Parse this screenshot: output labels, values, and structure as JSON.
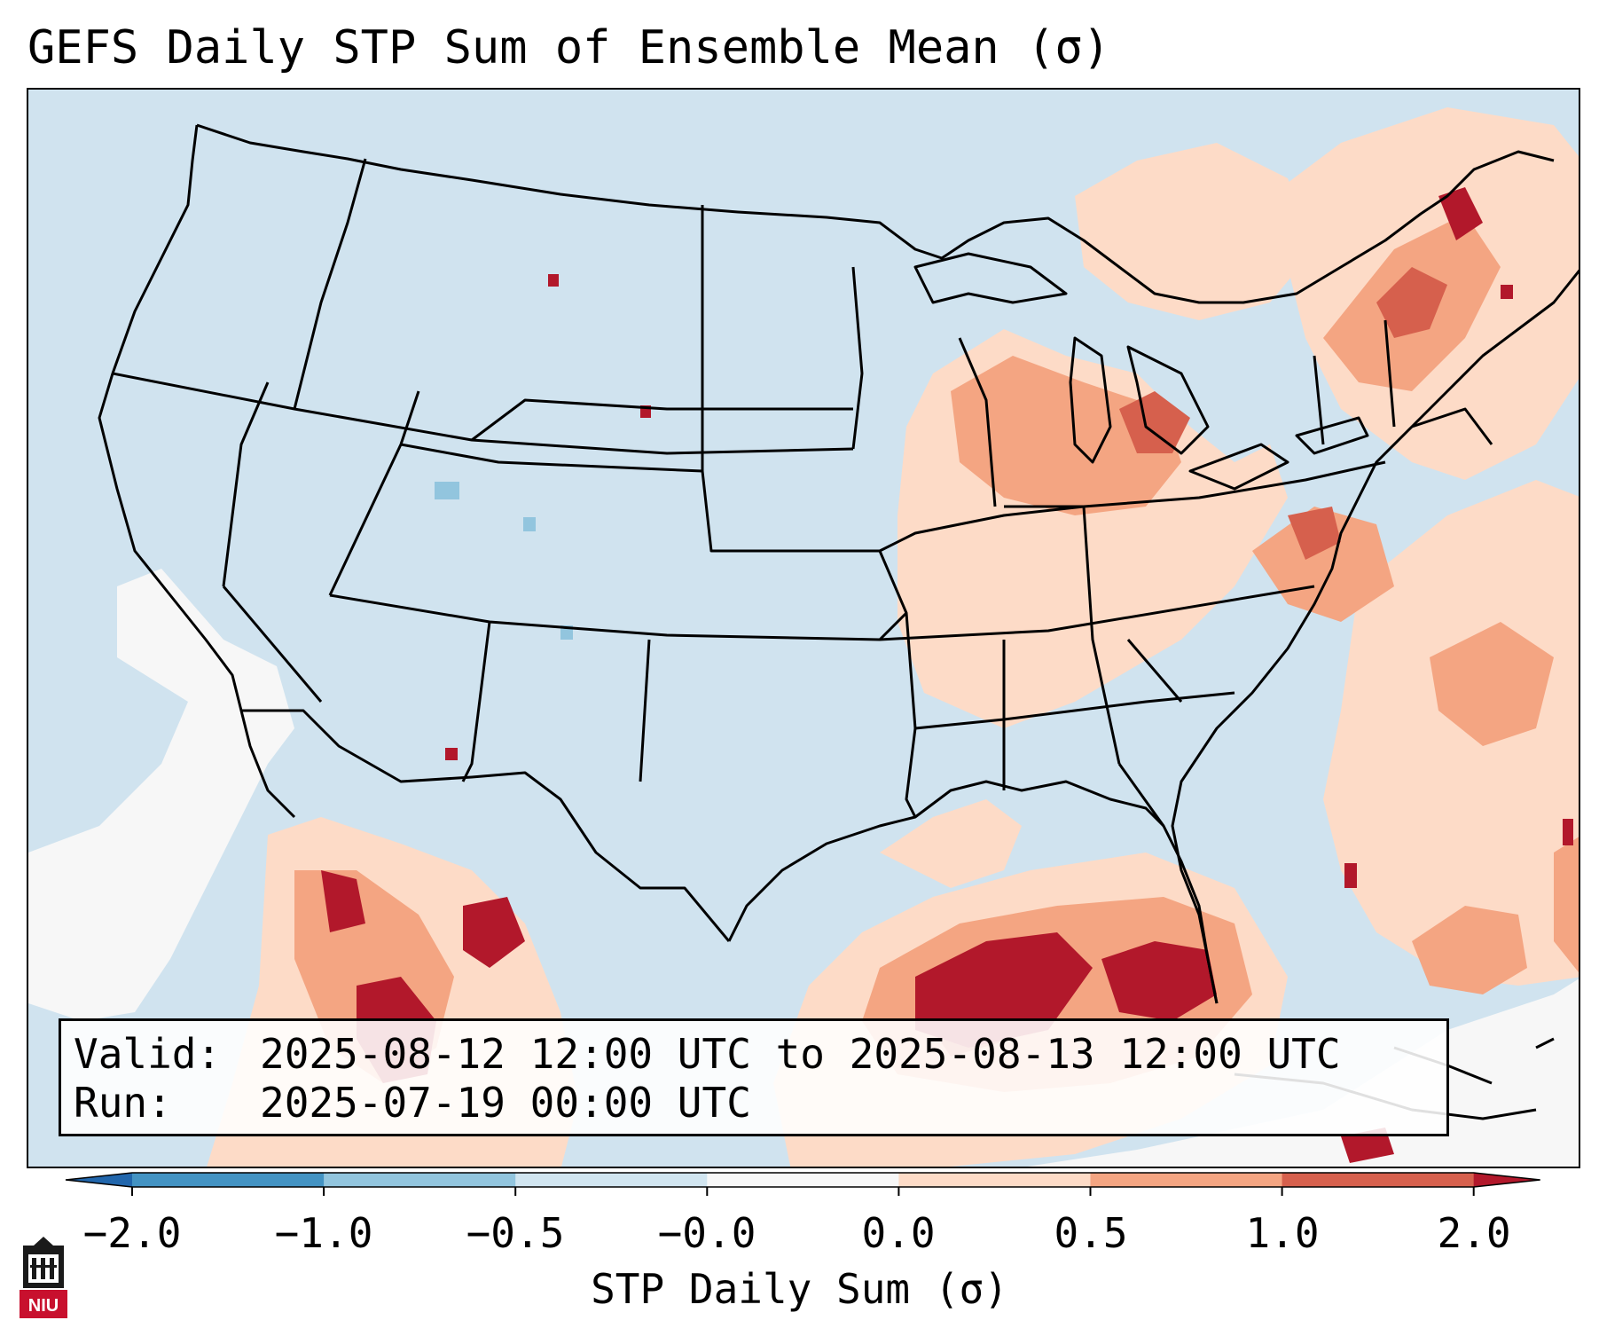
{
  "title": "GEFS Daily STP Sum of Ensemble Mean (σ)",
  "map": {
    "region": "Contiguous United States",
    "background_color": "#d0e3ef"
  },
  "info_box": {
    "valid_label": "Valid:",
    "valid_value": "2025-08-12 12:00 UTC to 2025-08-13 12:00 UTC",
    "run_label": "Run:",
    "run_value": "2025-07-19 00:00 UTC"
  },
  "colorbar": {
    "title": "STP Daily Sum (σ)",
    "tick_labels": [
      "−2.0",
      "−1.0",
      "−0.5",
      "−0.0",
      "0.0",
      "0.5",
      "1.0",
      "2.0"
    ],
    "bins": [
      {
        "range": "< -2.0",
        "color": "#2166ac"
      },
      {
        "range": "-2.0 to -1.0",
        "color": "#4393c3"
      },
      {
        "range": "-1.0 to -0.5",
        "color": "#92c5de"
      },
      {
        "range": "-0.5 to -0.0",
        "color": "#d1e5f0"
      },
      {
        "range": "-0.0 to 0.0",
        "color": "#f7f7f7"
      },
      {
        "range": "0.0 to 0.5",
        "color": "#fddbc7"
      },
      {
        "range": "0.5 to 1.0",
        "color": "#f4a582"
      },
      {
        "range": "1.0 to 2.0",
        "color": "#d6604d"
      },
      {
        "range": "> 2.0",
        "color": "#b2182b"
      }
    ]
  },
  "logo": {
    "text": "NIU",
    "icon": "niu-logo-icon"
  }
}
